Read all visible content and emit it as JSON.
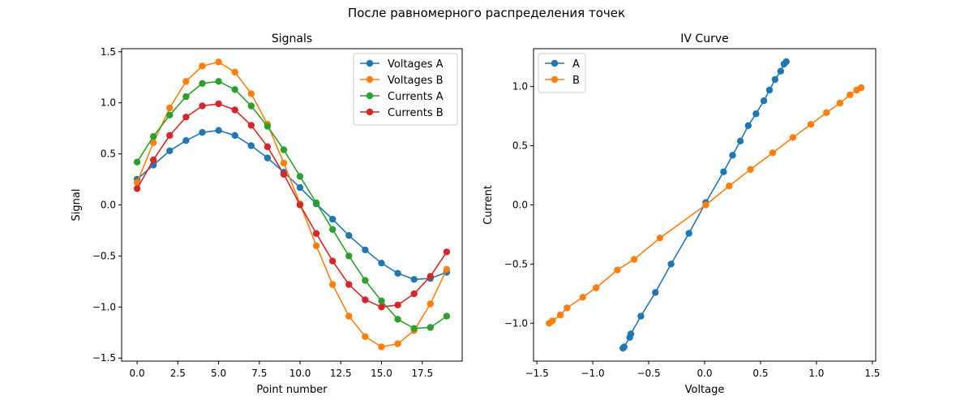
{
  "suptitle": "После равномерного распределения точек",
  "chart_data": [
    {
      "type": "line",
      "title": "Signals",
      "xlabel": "Point number",
      "ylabel": "Signal",
      "xlim": [
        -0.95,
        19.95
      ],
      "ylim": [
        -1.53,
        1.53
      ],
      "xticks": [
        0,
        2.5,
        5,
        7.5,
        10,
        12.5,
        15,
        17.5
      ],
      "xtick_labels": [
        "0.0",
        "2.5",
        "5.0",
        "7.5",
        "10.0",
        "12.5",
        "15.0",
        "17.5"
      ],
      "yticks": [
        -1.5,
        -1,
        -0.5,
        0,
        0.5,
        1,
        1.5
      ],
      "ytick_labels": [
        "−1.5",
        "−1.0",
        "−0.5",
        "0.0",
        "0.5",
        "1.0",
        "1.5"
      ],
      "legend_position": "upper right",
      "grid": false,
      "x": [
        0,
        1,
        2,
        3,
        4,
        5,
        6,
        7,
        8,
        9,
        10,
        11,
        12,
        13,
        14,
        15,
        16,
        17,
        18,
        19
      ],
      "series": [
        {
          "name": "Voltages A",
          "color": "#1f77b4",
          "values": [
            0.25,
            0.39,
            0.53,
            0.63,
            0.71,
            0.73,
            0.68,
            0.58,
            0.46,
            0.32,
            0.17,
            0.01,
            -0.14,
            -0.3,
            -0.44,
            -0.57,
            -0.67,
            -0.73,
            -0.72,
            -0.66
          ]
        },
        {
          "name": "Voltages B",
          "color": "#ff7f0e",
          "values": [
            0.22,
            0.61,
            0.95,
            1.21,
            1.36,
            1.4,
            1.3,
            1.09,
            0.79,
            0.41,
            0.01,
            -0.4,
            -0.78,
            -1.09,
            -1.29,
            -1.39,
            -1.36,
            -1.23,
            -0.97,
            -0.63
          ]
        },
        {
          "name": "Currents A",
          "color": "#2ca02c",
          "values": [
            0.42,
            0.67,
            0.88,
            1.06,
            1.19,
            1.21,
            1.13,
            0.97,
            0.77,
            0.54,
            0.28,
            0.02,
            -0.24,
            -0.5,
            -0.74,
            -0.94,
            -1.12,
            -1.21,
            -1.2,
            -1.09
          ]
        },
        {
          "name": "Currents B",
          "color": "#d62728",
          "values": [
            0.16,
            0.44,
            0.68,
            0.86,
            0.97,
            0.99,
            0.93,
            0.78,
            0.57,
            0.3,
            0.0,
            -0.28,
            -0.55,
            -0.78,
            -0.93,
            -1.0,
            -0.98,
            -0.87,
            -0.7,
            -0.46
          ]
        }
      ]
    },
    {
      "type": "line",
      "title": "IV Curve",
      "xlabel": "Voltage",
      "ylabel": "Current",
      "xlim": [
        -1.53,
        1.53
      ],
      "ylim": [
        -1.32,
        1.32
      ],
      "xticks": [
        -1.5,
        -1,
        -0.5,
        0,
        0.5,
        1,
        1.5
      ],
      "xtick_labels": [
        "−1.5",
        "−1.0",
        "−0.5",
        "0.0",
        "0.5",
        "1.0",
        "1.5"
      ],
      "yticks": [
        -1,
        -0.5,
        0,
        0.5,
        1
      ],
      "ytick_labels": [
        "−1.0",
        "−0.5",
        "0.0",
        "0.5",
        "1.0"
      ],
      "legend_position": "upper left",
      "grid": false,
      "series": [
        {
          "name": "A",
          "color": "#1f77b4",
          "x": [
            -0.73,
            -0.72,
            -0.67,
            -0.66,
            -0.57,
            -0.44,
            -0.3,
            -0.14,
            0.01,
            0.17,
            0.25,
            0.32,
            0.39,
            0.46,
            0.53,
            0.58,
            0.63,
            0.68,
            0.71,
            0.73
          ],
          "y": [
            -1.21,
            -1.2,
            -1.12,
            -1.09,
            -0.94,
            -0.74,
            -0.5,
            -0.24,
            0.02,
            0.28,
            0.42,
            0.54,
            0.67,
            0.77,
            0.88,
            0.97,
            1.06,
            1.13,
            1.19,
            1.21
          ]
        },
        {
          "name": "B",
          "color": "#ff7f0e",
          "x": [
            -1.39,
            -1.36,
            -1.29,
            -1.23,
            -1.09,
            -0.97,
            -0.78,
            -0.63,
            -0.4,
            0.01,
            0.22,
            0.41,
            0.61,
            0.79,
            0.95,
            1.09,
            1.21,
            1.3,
            1.36,
            1.4
          ],
          "y": [
            -1.0,
            -0.98,
            -0.93,
            -0.87,
            -0.78,
            -0.7,
            -0.55,
            -0.46,
            -0.28,
            0.0,
            0.16,
            0.3,
            0.44,
            0.57,
            0.68,
            0.78,
            0.86,
            0.93,
            0.97,
            0.99
          ]
        }
      ]
    }
  ]
}
